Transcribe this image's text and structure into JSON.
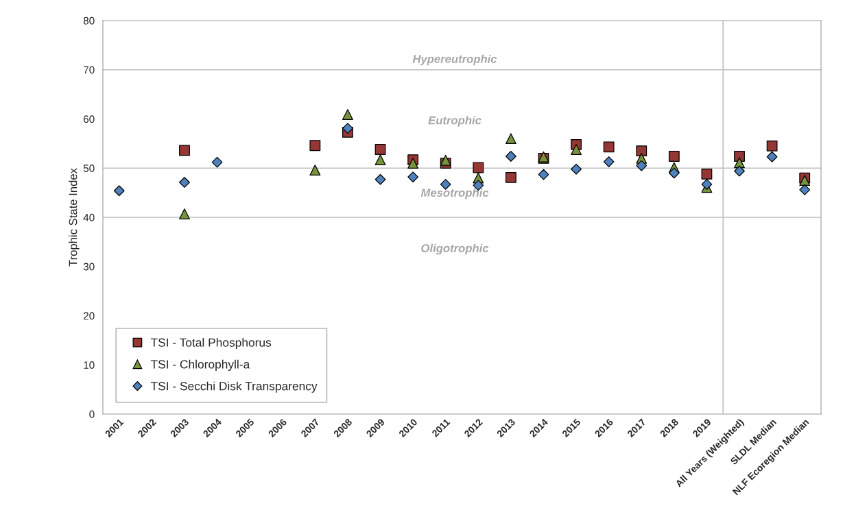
{
  "chart_data": {
    "type": "scatter",
    "ylabel": "Trophic State Index",
    "categories": [
      "2001",
      "2002",
      "2003",
      "2004",
      "2005",
      "2006",
      "2007",
      "2008",
      "2009",
      "2010",
      "2011",
      "2012",
      "2013",
      "2014",
      "2015",
      "2016",
      "2017",
      "2018",
      "2019",
      "All Years (Weighted)",
      "SLDL Median",
      "NLF Ecoregion Median"
    ],
    "series": [
      {
        "name": "TSI - Total Phosphorus",
        "color": "#953735",
        "marker": "square",
        "values": [
          null,
          null,
          53.6,
          null,
          null,
          null,
          54.6,
          57.3,
          53.8,
          51.7,
          51.0,
          50.1,
          48.1,
          52.0,
          54.8,
          54.3,
          53.5,
          52.4,
          48.8,
          52.4,
          54.5,
          48.0
        ]
      },
      {
        "name": "TSI - Chlorophyll-a",
        "color": "#77933c",
        "marker": "triangle",
        "values": [
          null,
          null,
          40.7,
          null,
          null,
          null,
          49.6,
          60.9,
          51.7,
          51.0,
          51.6,
          48.0,
          56.0,
          52.3,
          53.8,
          null,
          52.0,
          50.1,
          46.1,
          51.1,
          null,
          47.5
        ]
      },
      {
        "name": "TSI - Secchi Disk Transparency",
        "color": "#4f81bd",
        "marker": "diamond",
        "values": [
          45.4,
          null,
          47.1,
          51.2,
          null,
          null,
          null,
          58.1,
          47.7,
          48.2,
          46.7,
          46.5,
          52.4,
          48.7,
          49.8,
          51.3,
          50.5,
          49.0,
          46.7,
          49.4,
          52.3,
          45.6
        ]
      }
    ],
    "ylim": [
      0,
      80
    ],
    "yticks": [
      0,
      10,
      20,
      30,
      40,
      50,
      60,
      70,
      80
    ],
    "grid": false,
    "legend": "bottom left",
    "ref_lines": [
      {
        "axis": "y",
        "value": 40,
        "color": "#c0c0c0"
      },
      {
        "axis": "y",
        "value": 50,
        "color": "#c0c0c0"
      },
      {
        "axis": "y",
        "value": 70,
        "color": "#c0c0c0"
      }
    ],
    "annotations": [
      "Hypereutrophic",
      "Eutrophic",
      "Mesotrophic",
      "Oligotrophic"
    ]
  }
}
